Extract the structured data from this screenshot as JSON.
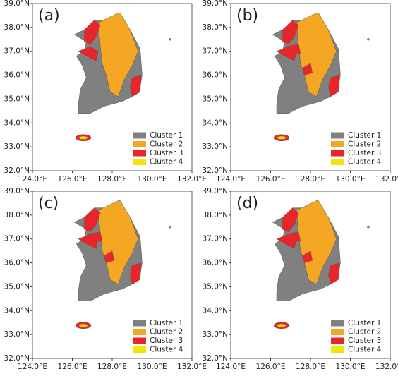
{
  "maps": [
    {
      "label": "(a)"
    },
    {
      "label": "(b)"
    },
    {
      "label": "(c)"
    },
    {
      "label": "(d)"
    }
  ],
  "xlim": [
    124,
    132
  ],
  "ylim": [
    32,
    39
  ],
  "lon_ticks": [
    {
      "value": 124,
      "label": "124.0°E"
    },
    {
      "value": 126,
      "label": "126.0°E"
    },
    {
      "value": 128,
      "label": "128.0°E"
    },
    {
      "value": 130,
      "label": "130.0°E"
    },
    {
      "value": 132,
      "label": "132.0°E"
    }
  ],
  "lat_ticks": [
    {
      "value": 32,
      "label": "32.0°N"
    },
    {
      "value": 33,
      "label": "33.0°N"
    },
    {
      "value": 34,
      "label": "34.0°N"
    },
    {
      "value": 35,
      "label": "35.0°N"
    },
    {
      "value": 36,
      "label": "36.0°N"
    },
    {
      "value": 37,
      "label": "37.0°N"
    },
    {
      "value": 38,
      "label": "38.0°N"
    },
    {
      "value": 39,
      "label": "39.0°N"
    }
  ],
  "legend": [
    {
      "name": "Cluster 1",
      "color": "#808080"
    },
    {
      "name": "Cluster 2",
      "color": "#f5a623"
    },
    {
      "name": "Cluster 3",
      "color": "#e8262a"
    },
    {
      "name": "Cluster 4",
      "color": "#f5e40a"
    }
  ]
}
